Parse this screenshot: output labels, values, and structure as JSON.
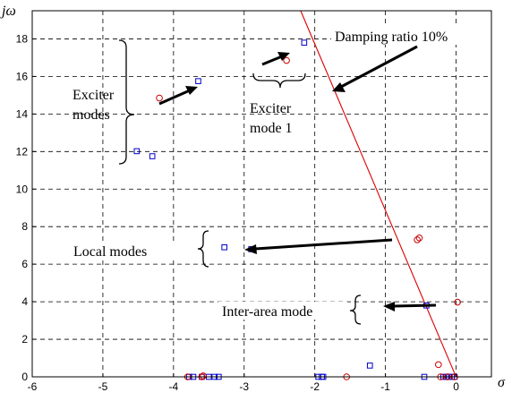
{
  "chart_data": {
    "type": "scatter",
    "title": "",
    "xlabel": "σ",
    "ylabel": "jω",
    "xlim": [
      -6,
      0.5
    ],
    "ylim": [
      0,
      19.5
    ],
    "grid": true,
    "xticks": [
      -6,
      -5,
      -4,
      -3,
      -2,
      -1,
      0
    ],
    "yticks": [
      0,
      2,
      4,
      6,
      8,
      10,
      12,
      14,
      16,
      18
    ],
    "xtick_labels": [
      "-6",
      "-5",
      "-4",
      "-3",
      "-2",
      "-1",
      "0"
    ],
    "ytick_labels": [
      "0",
      "2",
      "4",
      "6",
      "8",
      "10",
      "12",
      "14",
      "16",
      "18"
    ],
    "series": [
      {
        "marker": "square",
        "color": "#0000cc",
        "points": [
          [
            -4.52,
            12.02
          ],
          [
            -4.3,
            11.75
          ],
          [
            -3.65,
            15.75
          ],
          [
            -2.15,
            17.8
          ],
          [
            -3.28,
            6.9
          ],
          [
            -2.9,
            6.8
          ],
          [
            -0.42,
            3.8
          ],
          [
            -3.78,
            0.0
          ],
          [
            -3.72,
            0.0
          ],
          [
            -3.6,
            0.0
          ],
          [
            -3.5,
            0.0
          ],
          [
            -3.42,
            0.0
          ],
          [
            -3.36,
            0.0
          ],
          [
            -1.95,
            0.0
          ],
          [
            -1.9,
            0.0
          ],
          [
            -1.88,
            0.0
          ],
          [
            -1.22,
            0.6
          ],
          [
            -0.45,
            0.0
          ],
          [
            -0.18,
            0.0
          ],
          [
            -0.14,
            0.0
          ],
          [
            -0.1,
            0.0
          ],
          [
            -0.06,
            0.0
          ],
          [
            -0.02,
            0.0
          ]
        ]
      },
      {
        "marker": "circle",
        "color": "#cc0000",
        "points": [
          [
            -4.2,
            14.85
          ],
          [
            -2.4,
            16.85
          ],
          [
            -0.55,
            7.3
          ],
          [
            -0.52,
            7.4
          ],
          [
            0.02,
            3.98
          ],
          [
            -0.25,
            0.65
          ],
          [
            -3.8,
            0.0
          ],
          [
            -3.6,
            0.0
          ],
          [
            -3.58,
            0.05
          ],
          [
            -1.55,
            0.0
          ],
          [
            -0.22,
            0.0
          ],
          [
            -0.12,
            0.0
          ],
          [
            -0.02,
            0.0
          ]
        ]
      }
    ],
    "damping_line": {
      "label": "Damping ratio 10%",
      "color": "#dd0000",
      "from": [
        -2.2,
        19.5
      ],
      "to": [
        0.0,
        0.0
      ]
    },
    "annotations": [
      {
        "id": "exciter-modes",
        "lines": [
          "Exciter",
          "modes"
        ]
      },
      {
        "id": "exciter-mode-1",
        "lines": [
          "Exciter",
          "mode 1"
        ]
      },
      {
        "id": "damping-ratio",
        "lines": [
          "Damping ratio 10%"
        ]
      },
      {
        "id": "local-modes",
        "lines": [
          "Local modes"
        ]
      },
      {
        "id": "inter-area-mode",
        "lines": [
          "Inter-area mode"
        ]
      }
    ]
  }
}
